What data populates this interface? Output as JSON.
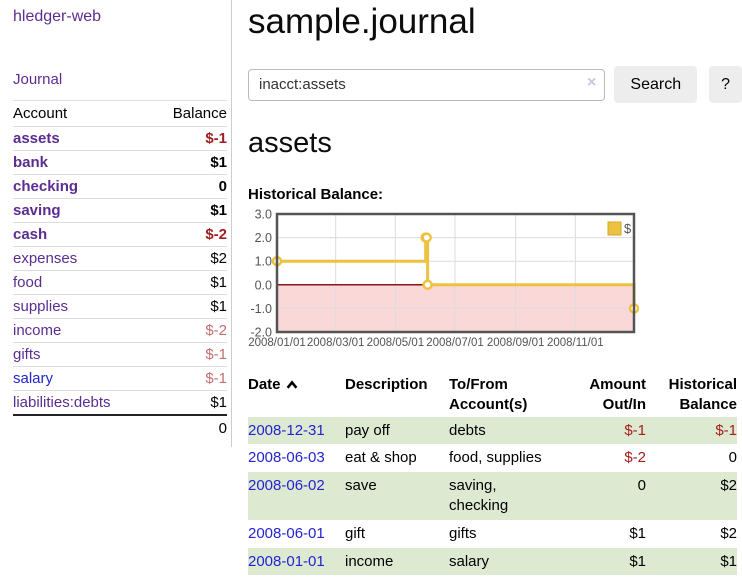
{
  "sidebar": {
    "brand": "hledger-web",
    "nav_journal": "Journal",
    "table_headers": [
      "Account",
      "Balance"
    ],
    "accounts": [
      {
        "name": "assets",
        "depth": 1,
        "balance": "$-1",
        "bold": true,
        "balance_color": "negstrong"
      },
      {
        "name": "bank",
        "depth": 2,
        "balance": "$1",
        "bold": true
      },
      {
        "name": "checking",
        "depth": 3,
        "balance": "0",
        "bold": true
      },
      {
        "name": "saving",
        "depth": 3,
        "balance": "$1",
        "bold": true
      },
      {
        "name": "cash",
        "depth": 2,
        "balance": "$-2",
        "bold": true,
        "balance_color": "negstrong"
      },
      {
        "name": "expenses",
        "depth": 1,
        "balance": "$2"
      },
      {
        "name": "food",
        "depth": 2,
        "balance": "$1"
      },
      {
        "name": "supplies",
        "depth": 2,
        "balance": "$1"
      },
      {
        "name": "income",
        "depth": 1,
        "balance": "$-2",
        "balance_color": "negsoft"
      },
      {
        "name": "gifts",
        "depth": 2,
        "balance": "$-1",
        "balance_color": "negsoft"
      },
      {
        "name": "salary",
        "depth": 2,
        "balance": "$-1",
        "balance_color": "negsoft",
        "link_color": "blue"
      },
      {
        "name": "liabilities:debts",
        "depth": 1,
        "balance": "$1"
      }
    ],
    "total": "0"
  },
  "header": {
    "title": "sample.journal"
  },
  "search": {
    "value": "inacct:assets",
    "clear_icon": "×",
    "button_label": "Search",
    "help_label": "?"
  },
  "content": {
    "heading": "assets",
    "chart_label": "Historical Balance:"
  },
  "chart_data": {
    "type": "line",
    "title": "Historical Balance",
    "step": true,
    "xlim": [
      "2008-01-01",
      "2008-12-31"
    ],
    "ylim": [
      -2,
      3
    ],
    "y_ticks": [
      3.0,
      2.0,
      1.0,
      0.0,
      -1.0,
      -2.0
    ],
    "x_ticks": [
      {
        "date": "2008-01-01",
        "label": "2008/01/01"
      },
      {
        "date": "2008-03-01",
        "label": "2008/03/01"
      },
      {
        "date": "2008-05-01",
        "label": "2008/05/01"
      },
      {
        "date": "2008-07-01",
        "label": "2008/07/01"
      },
      {
        "date": "2008-09-01",
        "label": "2008/09/01"
      },
      {
        "date": "2008-11-01",
        "label": "2008/11/01"
      }
    ],
    "series": [
      {
        "name": "$",
        "color": "#edc240",
        "points": [
          [
            "2008-01-01",
            1
          ],
          [
            "2008-06-01",
            2
          ],
          [
            "2008-06-02",
            2
          ],
          [
            "2008-06-03",
            0
          ],
          [
            "2008-12-31",
            -1
          ]
        ]
      }
    ],
    "legend": {
      "label": "$",
      "position": "top-right"
    },
    "grid": true,
    "negative_region_fill": "#fbd8d8",
    "zero_line_color": "#8b1515",
    "border_color": "#545454",
    "grid_color": "#dcdcdc",
    "tick_color": "#545454"
  },
  "register": {
    "headers": [
      "Date",
      "Description",
      "To/From Account(s)",
      "Amount Out/In",
      "Historical Balance"
    ],
    "rows": [
      {
        "date": "2008-12-31",
        "description": "pay off",
        "to_from": "debts",
        "amount": "$-1",
        "amount_neg": true,
        "balance": "$-1",
        "balance_neg": true,
        "shade": true
      },
      {
        "date": "2008-06-03",
        "description": "eat & shop",
        "to_from": "food, supplies",
        "amount": "$-2",
        "amount_neg": true,
        "balance": "0",
        "balance_neg": false,
        "shade": false
      },
      {
        "date": "2008-06-02",
        "description": "save",
        "to_from": "saving, checking",
        "amount": "0",
        "amount_neg": false,
        "balance": "$2",
        "balance_neg": false,
        "shade": true
      },
      {
        "date": "2008-06-01",
        "description": "gift",
        "to_from": "gifts",
        "amount": "$1",
        "amount_neg": false,
        "balance": "$2",
        "balance_neg": false,
        "shade": false
      },
      {
        "date": "2008-01-01",
        "description": "income",
        "to_from": "salary",
        "amount": "$1",
        "amount_neg": false,
        "balance": "$1",
        "balance_neg": false,
        "shade": true
      }
    ]
  },
  "colors": {
    "link_purple": "#5c2d91",
    "link_blue": "#2323d2",
    "negative_strong": "#a31e1e",
    "negative_soft": "#c56f6f",
    "row_stripe_green": "#dee9d2",
    "series_yellow": "#edc240"
  }
}
